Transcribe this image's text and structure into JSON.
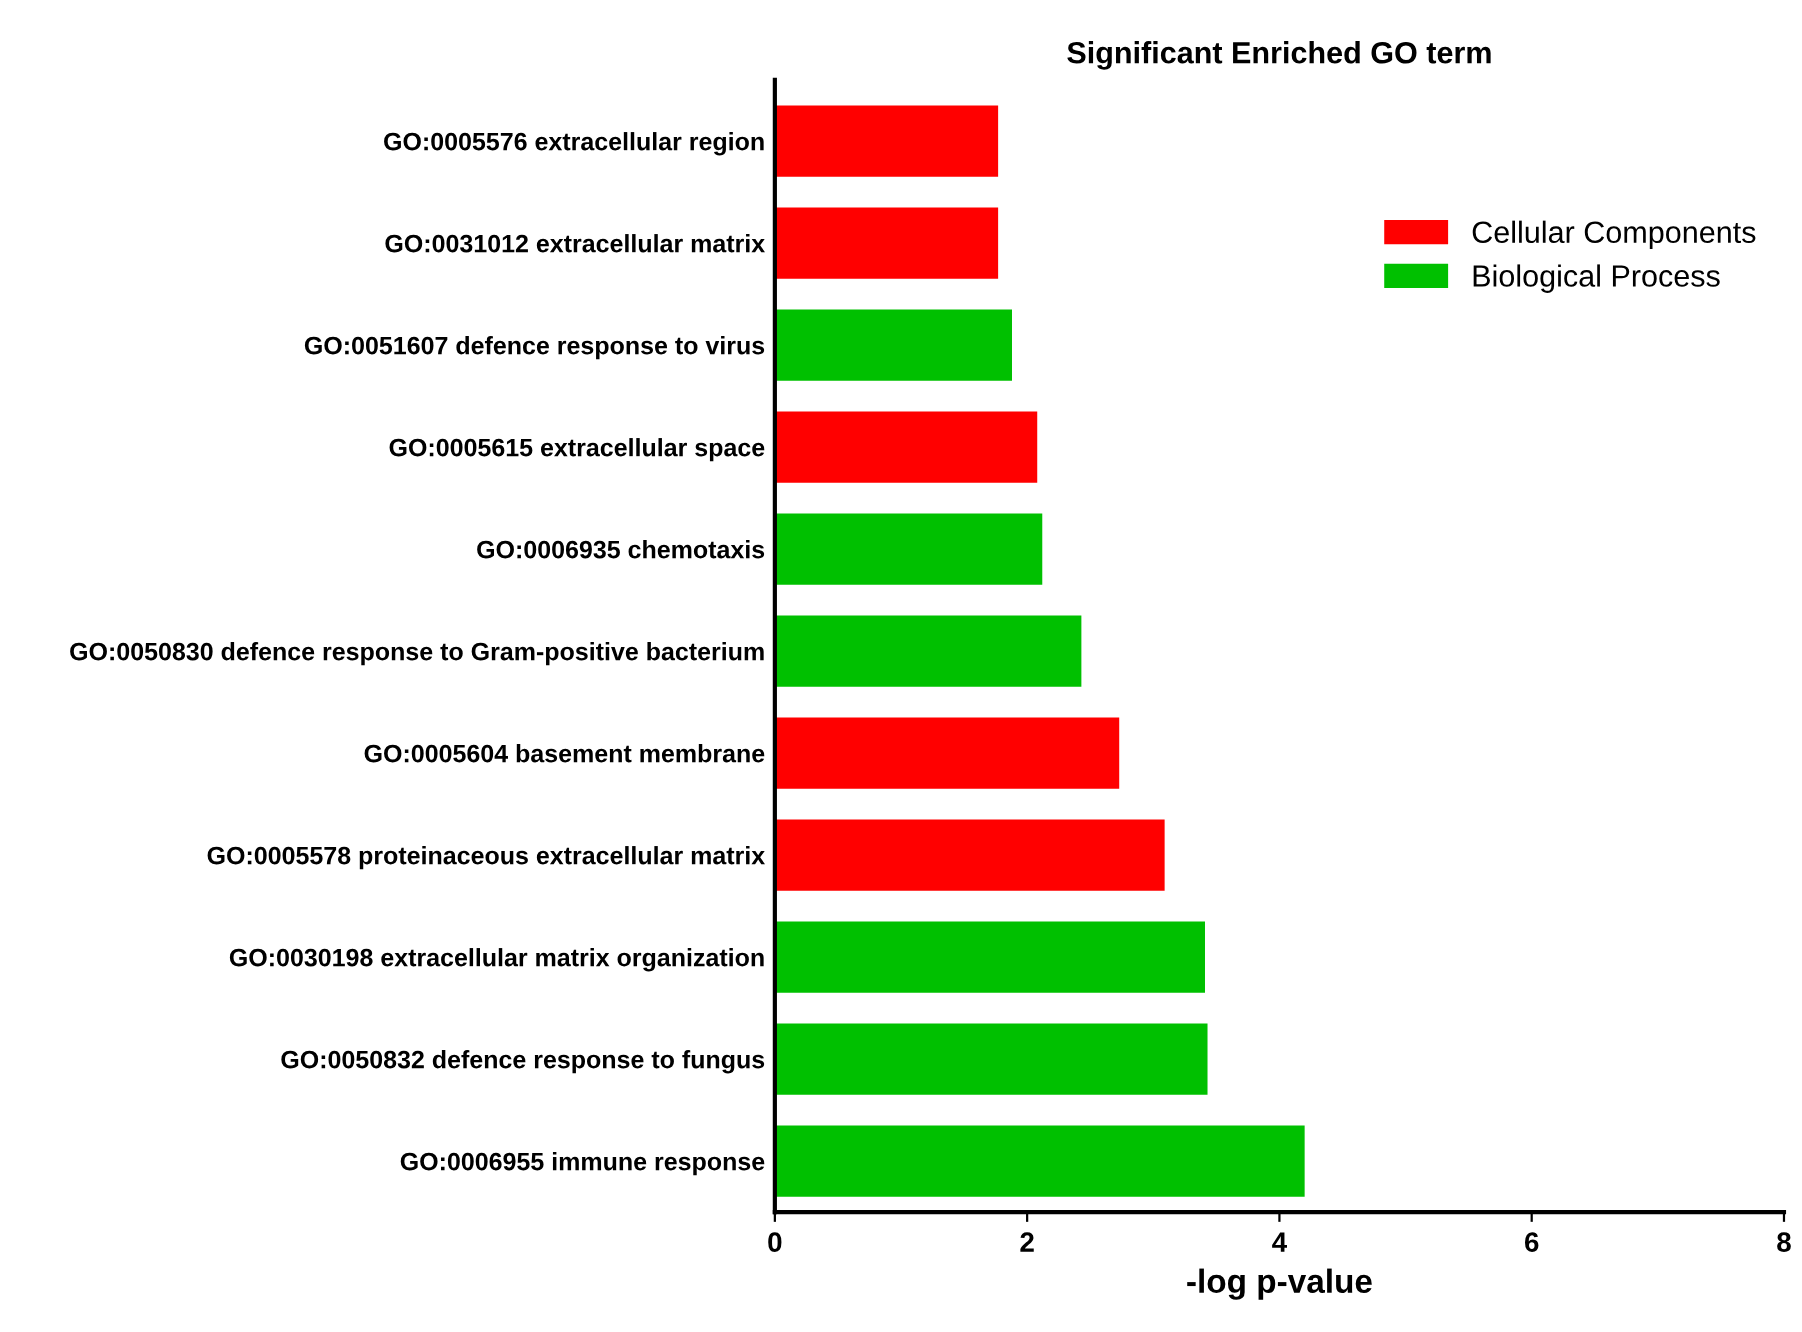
{
  "chart_data": {
    "type": "bar",
    "orientation": "horizontal",
    "title": "Significant Enriched GO term",
    "xlabel": "-log p-value",
    "categories": [
      "GO:0005576 extracellular region",
      "GO:0031012 extracellular matrix",
      "GO:0051607 defence response to virus",
      "GO:0005615 extracellular space",
      "GO:0006935 chemotaxis",
      "GO:0050830 defence response to Gram-positive bacterium",
      "GO:0005604 basement membrane",
      "GO:0005578 proteinaceous extracellular matrix",
      "GO:0030198 extracellular matrix organization",
      "GO:0050832 defence response to fungus",
      "GO:0006955 immune response"
    ],
    "series": [
      {
        "name": "Cellular Components",
        "color": "#ff0000",
        "values": [
          1.77,
          1.77,
          null,
          2.08,
          null,
          null,
          2.73,
          3.09,
          null,
          null,
          null
        ]
      },
      {
        "name": "Biological Process",
        "color": "#00c000",
        "values": [
          null,
          null,
          1.88,
          null,
          2.12,
          2.43,
          null,
          null,
          3.41,
          3.43,
          4.2
        ]
      }
    ],
    "xlim": [
      0,
      8
    ],
    "xticks": [
      0,
      2,
      4,
      6,
      8
    ],
    "grid": false,
    "legend": "top right"
  }
}
